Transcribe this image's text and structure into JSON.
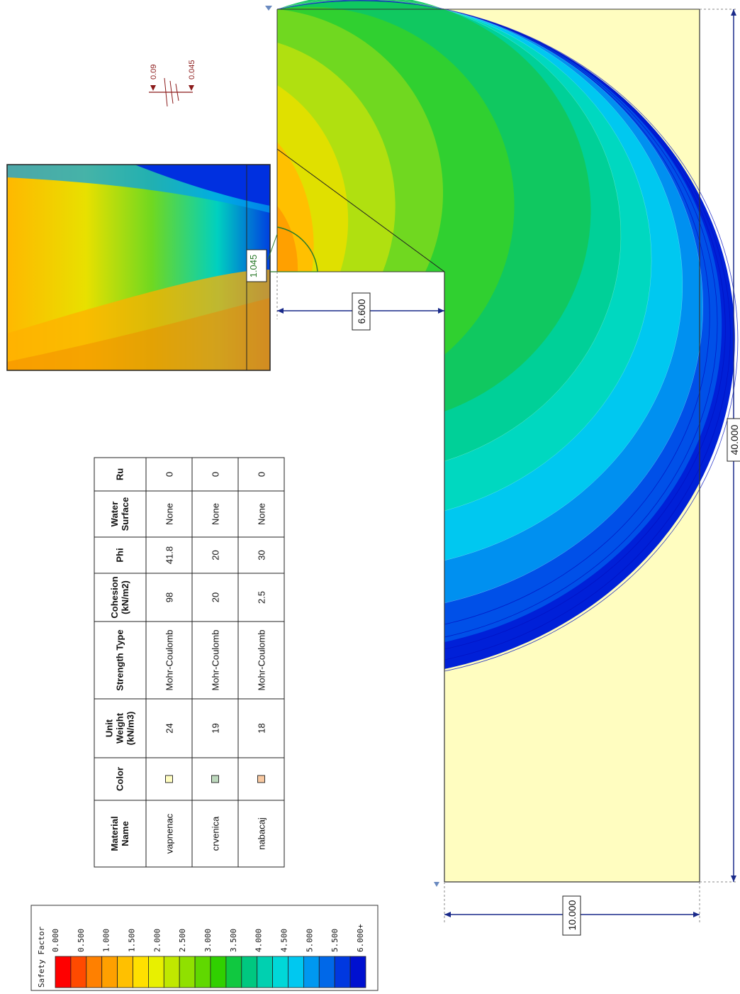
{
  "legend": {
    "title": "Safety Factor",
    "ticks": [
      "0.000",
      "0.500",
      "1.000",
      "1.500",
      "2.000",
      "2.500",
      "3.000",
      "3.500",
      "4.000",
      "4.500",
      "5.000",
      "5.500",
      "6.000+"
    ],
    "colors": [
      "#ff0000",
      "#ff4a00",
      "#ff8000",
      "#ffa000",
      "#ffc000",
      "#ffe000",
      "#e8f000",
      "#c0e800",
      "#90e000",
      "#60d800",
      "#30d000",
      "#10c840",
      "#00c880",
      "#00d0b0",
      "#00d8d8",
      "#00c8f0",
      "#0098f0",
      "#0068e8",
      "#0038e0",
      "#0010d0"
    ]
  },
  "materials_table": {
    "headers": [
      "Material Name",
      "Color",
      "Unit Weight (kN/m3)",
      "Strength Type",
      "Cohesion (kN/m2)",
      "Phi",
      "Water Surface",
      "Ru"
    ],
    "rows": [
      {
        "name": "vapnenac",
        "color": "#fffdc0",
        "unit_weight": "24",
        "strength_type": "Mohr-Coulomb",
        "cohesion": "98",
        "phi": "41.8",
        "water_surface": "None",
        "ru": "0"
      },
      {
        "name": "crvenica",
        "color": "#bcd8bc",
        "unit_weight": "19",
        "strength_type": "Mohr-Coulomb",
        "cohesion": "20",
        "phi": "20",
        "water_surface": "None",
        "ru": "0"
      },
      {
        "name": "nabacaj",
        "color": "#f8c8a0",
        "unit_weight": "18",
        "strength_type": "Mohr-Coulomb",
        "cohesion": "2.5",
        "phi": "30",
        "water_surface": "None",
        "ru": "0"
      }
    ]
  },
  "dimensions": {
    "width_total": "40.000",
    "height_total": "10.000",
    "bench": "6.600"
  },
  "critical_factor": "1.045",
  "load_labels": {
    "a": "0.09",
    "b": "0.045"
  }
}
